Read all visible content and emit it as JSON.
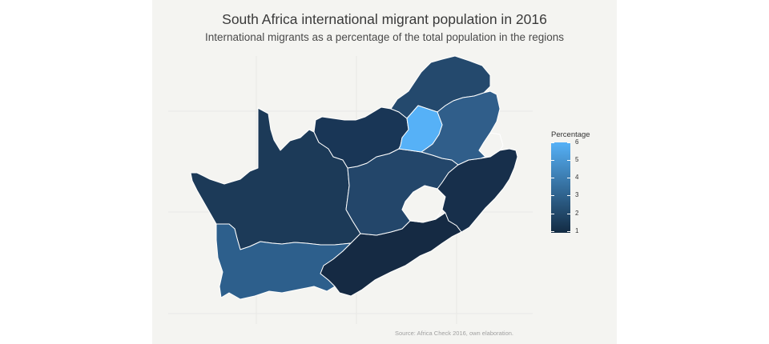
{
  "title": "South Africa international migrant population in 2016",
  "subtitle": "International migrants as a percentage of the total population in the regions",
  "source": "Source: Africa Check 2016, own elaboration.",
  "legend": {
    "title": "Percentage",
    "ticks": [
      "6",
      "5",
      "4",
      "3",
      "2",
      "1"
    ],
    "low_color": "#132b43",
    "high_color": "#56b1f7"
  },
  "map": {
    "background": "#f4f4f1",
    "border_color": "#ffffff"
  }
}
